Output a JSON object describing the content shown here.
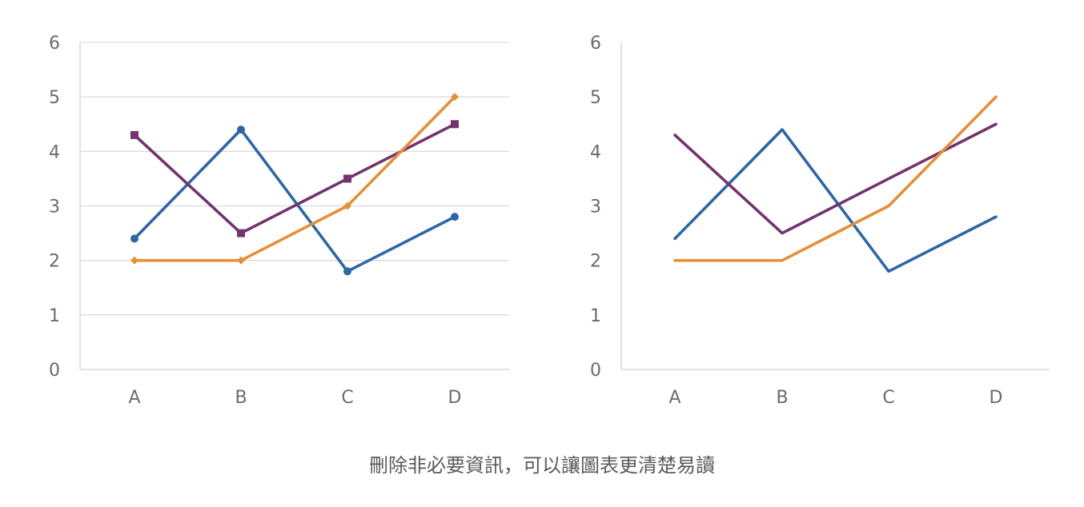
{
  "caption": "刪除非必要資訊，可以讓圖表更清楚易讀",
  "chart_data": [
    {
      "type": "line",
      "categories": [
        "A",
        "B",
        "C",
        "D"
      ],
      "ylim": [
        0,
        6
      ],
      "yticks": [
        0,
        1,
        2,
        3,
        4,
        5,
        6
      ],
      "grid": true,
      "markers": true,
      "legend": "none",
      "series": [
        {
          "values": [
            2.4,
            4.4,
            1.8,
            2.8
          ],
          "color": "#2e67a3",
          "marker": "circle"
        },
        {
          "values": [
            4.3,
            2.5,
            3.5,
            4.5
          ],
          "color": "#74336e",
          "marker": "square"
        },
        {
          "values": [
            2.0,
            2.0,
            3.0,
            5.0
          ],
          "color": "#e48f3a",
          "marker": "diamond"
        }
      ]
    },
    {
      "type": "line",
      "categories": [
        "A",
        "B",
        "C",
        "D"
      ],
      "ylim": [
        0,
        6
      ],
      "yticks": [
        0,
        1,
        2,
        3,
        4,
        5,
        6
      ],
      "grid": false,
      "markers": false,
      "legend": "none",
      "series": [
        {
          "values": [
            2.4,
            4.4,
            1.8,
            2.8
          ],
          "color": "#2e67a3"
        },
        {
          "values": [
            4.3,
            2.5,
            3.5,
            4.5
          ],
          "color": "#74336e"
        },
        {
          "values": [
            2.0,
            2.0,
            3.0,
            5.0
          ],
          "color": "#e48f3a"
        }
      ]
    }
  ]
}
